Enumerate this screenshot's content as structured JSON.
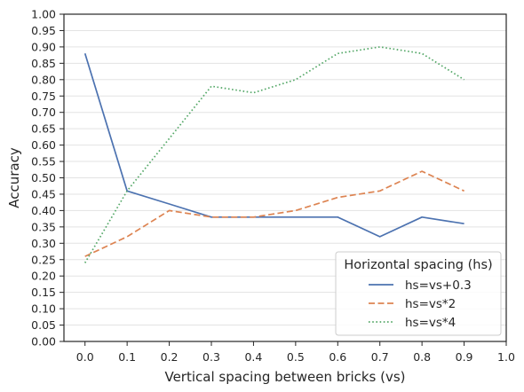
{
  "chart_data": {
    "type": "line",
    "title": "",
    "xlabel": "Vertical spacing between bricks (vs)",
    "ylabel": "Accuracy",
    "xlim": [
      -0.05,
      1.0
    ],
    "ylim": [
      0.0,
      1.0
    ],
    "xticks": [
      0.0,
      0.1,
      0.2,
      0.3,
      0.4,
      0.5,
      0.6,
      0.7,
      0.8,
      0.9,
      1.0
    ],
    "xtick_labels": [
      "0.0",
      "0.1",
      "0.2",
      "0.3",
      "0.4",
      "0.5",
      "0.6",
      "0.7",
      "0.8",
      "0.9",
      "1.0"
    ],
    "yticks": [
      0.0,
      0.05,
      0.1,
      0.15,
      0.2,
      0.25,
      0.3,
      0.35,
      0.4,
      0.45,
      0.5,
      0.55,
      0.6,
      0.65,
      0.7,
      0.75,
      0.8,
      0.85,
      0.9,
      0.95,
      1.0
    ],
    "ytick_labels": [
      "0.00",
      "0.05",
      "0.10",
      "0.15",
      "0.20",
      "0.25",
      "0.30",
      "0.35",
      "0.40",
      "0.45",
      "0.50",
      "0.55",
      "0.60",
      "0.65",
      "0.70",
      "0.75",
      "0.80",
      "0.85",
      "0.90",
      "0.95",
      "1.00"
    ],
    "grid": "horizontal",
    "x": [
      0.0,
      0.1,
      0.2,
      0.3,
      0.4,
      0.5,
      0.6,
      0.7,
      0.8,
      0.9
    ],
    "series": [
      {
        "name": "hs=vs+0.3",
        "color": "#4c72b0",
        "style": "solid",
        "values": [
          0.88,
          0.46,
          0.42,
          0.38,
          0.38,
          0.38,
          0.38,
          0.32,
          0.38,
          0.36
        ]
      },
      {
        "name": "hs=vs*2",
        "color": "#dd8452",
        "style": "dashed",
        "values": [
          0.26,
          0.32,
          0.4,
          0.38,
          0.38,
          0.4,
          0.44,
          0.46,
          0.52,
          0.46
        ]
      },
      {
        "name": "hs=vs*4",
        "color": "#55a868",
        "style": "dotted",
        "values": [
          0.24,
          0.46,
          0.62,
          0.78,
          0.76,
          0.8,
          0.88,
          0.9,
          0.88,
          0.8
        ]
      }
    ],
    "legend": {
      "title": "Horizontal spacing (hs)",
      "placement": "lower-right"
    }
  }
}
